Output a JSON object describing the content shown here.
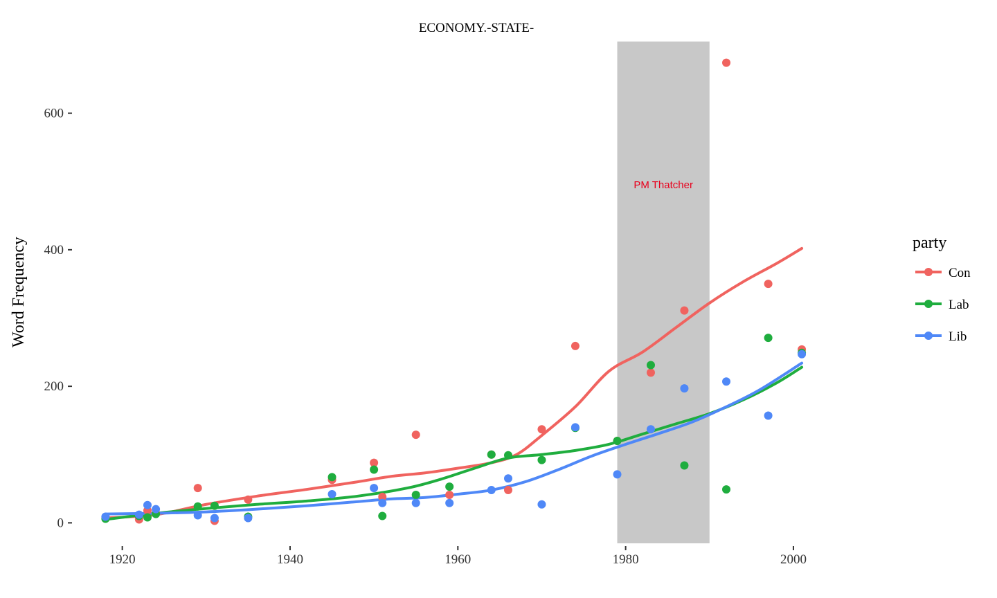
{
  "chart_data": {
    "type": "scatter",
    "title": "ECONOMY.-STATE-",
    "xlabel": "",
    "ylabel": "Word Frequency",
    "xlim": [
      1914.5,
      2009
    ],
    "ylim": [
      -30,
      705
    ],
    "x_ticks": [
      1920,
      1940,
      1960,
      1980,
      2000
    ],
    "y_ticks": [
      0,
      200,
      400,
      600
    ],
    "grid": false,
    "legend": {
      "title": "party",
      "position": "right",
      "entries": [
        "Con",
        "Lab",
        "Lib"
      ]
    },
    "annotations": [
      {
        "type": "rect",
        "x_start": 1979,
        "x_end": 1990,
        "color": "#c8c8c8"
      },
      {
        "type": "text",
        "text": "PM Thatcher",
        "x": 1984.5,
        "y": 500,
        "color": "#e8001c"
      }
    ],
    "series": [
      {
        "name": "Con",
        "color": "#f0635f",
        "points": [
          [
            1918,
            8
          ],
          [
            1922,
            5
          ],
          [
            1923,
            18
          ],
          [
            1924,
            14
          ],
          [
            1929,
            51
          ],
          [
            1931,
            3
          ],
          [
            1935,
            34
          ],
          [
            1945,
            63
          ],
          [
            1950,
            88
          ],
          [
            1951,
            38
          ],
          [
            1955,
            129
          ],
          [
            1959,
            41
          ],
          [
            1964,
            100
          ],
          [
            1966,
            48
          ],
          [
            1970,
            137
          ],
          [
            1974,
            259
          ],
          [
            1979,
            120
          ],
          [
            1983,
            220
          ],
          [
            1987,
            311
          ],
          [
            1992,
            674
          ],
          [
            1997,
            350
          ],
          [
            2001,
            254
          ]
        ],
        "smooth": [
          [
            1918,
            7
          ],
          [
            1924,
            12
          ],
          [
            1930,
            27
          ],
          [
            1936,
            39
          ],
          [
            1942,
            49
          ],
          [
            1948,
            60
          ],
          [
            1952,
            68
          ],
          [
            1956,
            73
          ],
          [
            1960,
            80
          ],
          [
            1964,
            88
          ],
          [
            1967,
            100
          ],
          [
            1970,
            128
          ],
          [
            1974,
            170
          ],
          [
            1978,
            222
          ],
          [
            1982,
            250
          ],
          [
            1986,
            286
          ],
          [
            1990,
            322
          ],
          [
            1994,
            353
          ],
          [
            1998,
            380
          ],
          [
            2001,
            402
          ]
        ]
      },
      {
        "name": "Lab",
        "color": "#1fad3e",
        "points": [
          [
            1918,
            6
          ],
          [
            1922,
            10
          ],
          [
            1923,
            8
          ],
          [
            1924,
            13
          ],
          [
            1929,
            24
          ],
          [
            1931,
            25
          ],
          [
            1935,
            9
          ],
          [
            1945,
            67
          ],
          [
            1950,
            78
          ],
          [
            1951,
            10
          ],
          [
            1955,
            41
          ],
          [
            1959,
            53
          ],
          [
            1964,
            100
          ],
          [
            1966,
            99
          ],
          [
            1970,
            92
          ],
          [
            1974,
            139
          ],
          [
            1979,
            120
          ],
          [
            1983,
            231
          ],
          [
            1987,
            84
          ],
          [
            1992,
            49
          ],
          [
            1997,
            271
          ],
          [
            2001,
            249
          ]
        ],
        "smooth": [
          [
            1918,
            5
          ],
          [
            1924,
            14
          ],
          [
            1930,
            21
          ],
          [
            1936,
            27
          ],
          [
            1942,
            32
          ],
          [
            1948,
            39
          ],
          [
            1954,
            51
          ],
          [
            1958,
            64
          ],
          [
            1962,
            80
          ],
          [
            1966,
            95
          ],
          [
            1970,
            100
          ],
          [
            1974,
            106
          ],
          [
            1978,
            115
          ],
          [
            1982,
            130
          ],
          [
            1986,
            145
          ],
          [
            1990,
            160
          ],
          [
            1994,
            180
          ],
          [
            1998,
            205
          ],
          [
            2001,
            228
          ]
        ]
      },
      {
        "name": "Lib",
        "color": "#4f88f7",
        "points": [
          [
            1918,
            9
          ],
          [
            1922,
            12
          ],
          [
            1923,
            26
          ],
          [
            1924,
            20
          ],
          [
            1929,
            11
          ],
          [
            1931,
            7
          ],
          [
            1935,
            7
          ],
          [
            1945,
            42
          ],
          [
            1950,
            51
          ],
          [
            1951,
            29
          ],
          [
            1955,
            29
          ],
          [
            1959,
            29
          ],
          [
            1964,
            48
          ],
          [
            1966,
            65
          ],
          [
            1970,
            27
          ],
          [
            1974,
            140
          ],
          [
            1979,
            71
          ],
          [
            1983,
            137
          ],
          [
            1987,
            197
          ],
          [
            1992,
            207
          ],
          [
            1997,
            157
          ],
          [
            2001,
            247
          ]
        ],
        "smooth": [
          [
            1918,
            13
          ],
          [
            1924,
            14
          ],
          [
            1930,
            16
          ],
          [
            1936,
            20
          ],
          [
            1942,
            25
          ],
          [
            1948,
            31
          ],
          [
            1952,
            35
          ],
          [
            1956,
            37
          ],
          [
            1960,
            42
          ],
          [
            1964,
            48
          ],
          [
            1968,
            60
          ],
          [
            1972,
            78
          ],
          [
            1976,
            98
          ],
          [
            1980,
            115
          ],
          [
            1984,
            131
          ],
          [
            1988,
            148
          ],
          [
            1992,
            170
          ],
          [
            1996,
            195
          ],
          [
            2001,
            234
          ]
        ]
      }
    ]
  }
}
